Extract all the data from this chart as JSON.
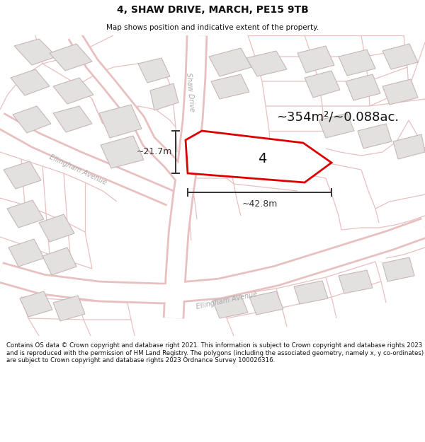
{
  "title": "4, SHAW DRIVE, MARCH, PE15 9TB",
  "subtitle": "Map shows position and indicative extent of the property.",
  "footer": "Contains OS data © Crown copyright and database right 2021. This information is subject to Crown copyright and database rights 2023 and is reproduced with the permission of HM Land Registry. The polygons (including the associated geometry, namely x, y co-ordinates) are subject to Crown copyright and database rights 2023 Ordnance Survey 100026316.",
  "area_label": "~354m²/~0.088ac.",
  "property_number": "4",
  "dim_width": "~42.8m",
  "dim_height": "~21.7m",
  "map_bg": "#f7f5f5",
  "road_color": "#ffffff",
  "plot_line_color": "#dd0000",
  "building_fill": "#e3e0e0",
  "building_stroke": "#c8b8b8",
  "road_stroke": "#e8c0c0",
  "parcel_stroke": "#e8c0c0",
  "highlight_fill": "#ffffff",
  "title_color": "#111111",
  "footer_color": "#111111",
  "dim_color": "#333333",
  "road_label_color": "#aaaaaa",
  "prop_label_color": "#111111"
}
